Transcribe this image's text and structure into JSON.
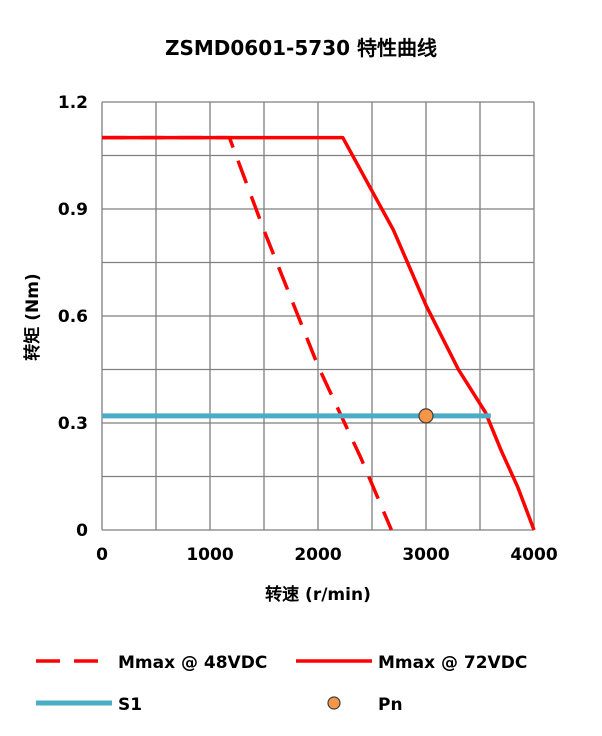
{
  "chart_data": {
    "type": "line",
    "title": "ZSMD0601-5730 特性曲线",
    "xlabel": "转速 (r/min)",
    "ylabel": "转矩 (Nm)",
    "xlim": [
      0,
      4000
    ],
    "ylim": [
      0,
      1.2
    ],
    "x_ticks": [
      "0",
      "1000",
      "2000",
      "3000",
      "4000"
    ],
    "y_ticks": [
      "0",
      "0.3",
      "0.6",
      "0.9",
      "1.2"
    ],
    "grid": true,
    "legend_position": "bottom",
    "series": [
      {
        "name": "Mmax @ 48VDC",
        "color": "#ff0000",
        "style": "dashed",
        "points": [
          [
            0,
            1.1
          ],
          [
            1180,
            1.1
          ],
          [
            1500,
            0.84
          ],
          [
            2000,
            0.46
          ],
          [
            2400,
            0.2
          ],
          [
            2680,
            0.0
          ]
        ]
      },
      {
        "name": "Mmax @ 72VDC",
        "color": "#ff0000",
        "style": "solid",
        "points": [
          [
            0,
            1.1
          ],
          [
            2230,
            1.1
          ],
          [
            2700,
            0.84
          ],
          [
            3000,
            0.63
          ],
          [
            3300,
            0.45
          ],
          [
            3550,
            0.33
          ],
          [
            3700,
            0.22
          ],
          [
            3850,
            0.12
          ],
          [
            4000,
            0.0
          ]
        ]
      },
      {
        "name": "S1",
        "color": "#4bacc6",
        "style": "solid",
        "points": [
          [
            0,
            0.32
          ],
          [
            3600,
            0.32
          ]
        ]
      },
      {
        "name": "Pn",
        "color": "#f79646",
        "style": "marker",
        "points": [
          [
            3000,
            0.32
          ]
        ]
      }
    ]
  }
}
